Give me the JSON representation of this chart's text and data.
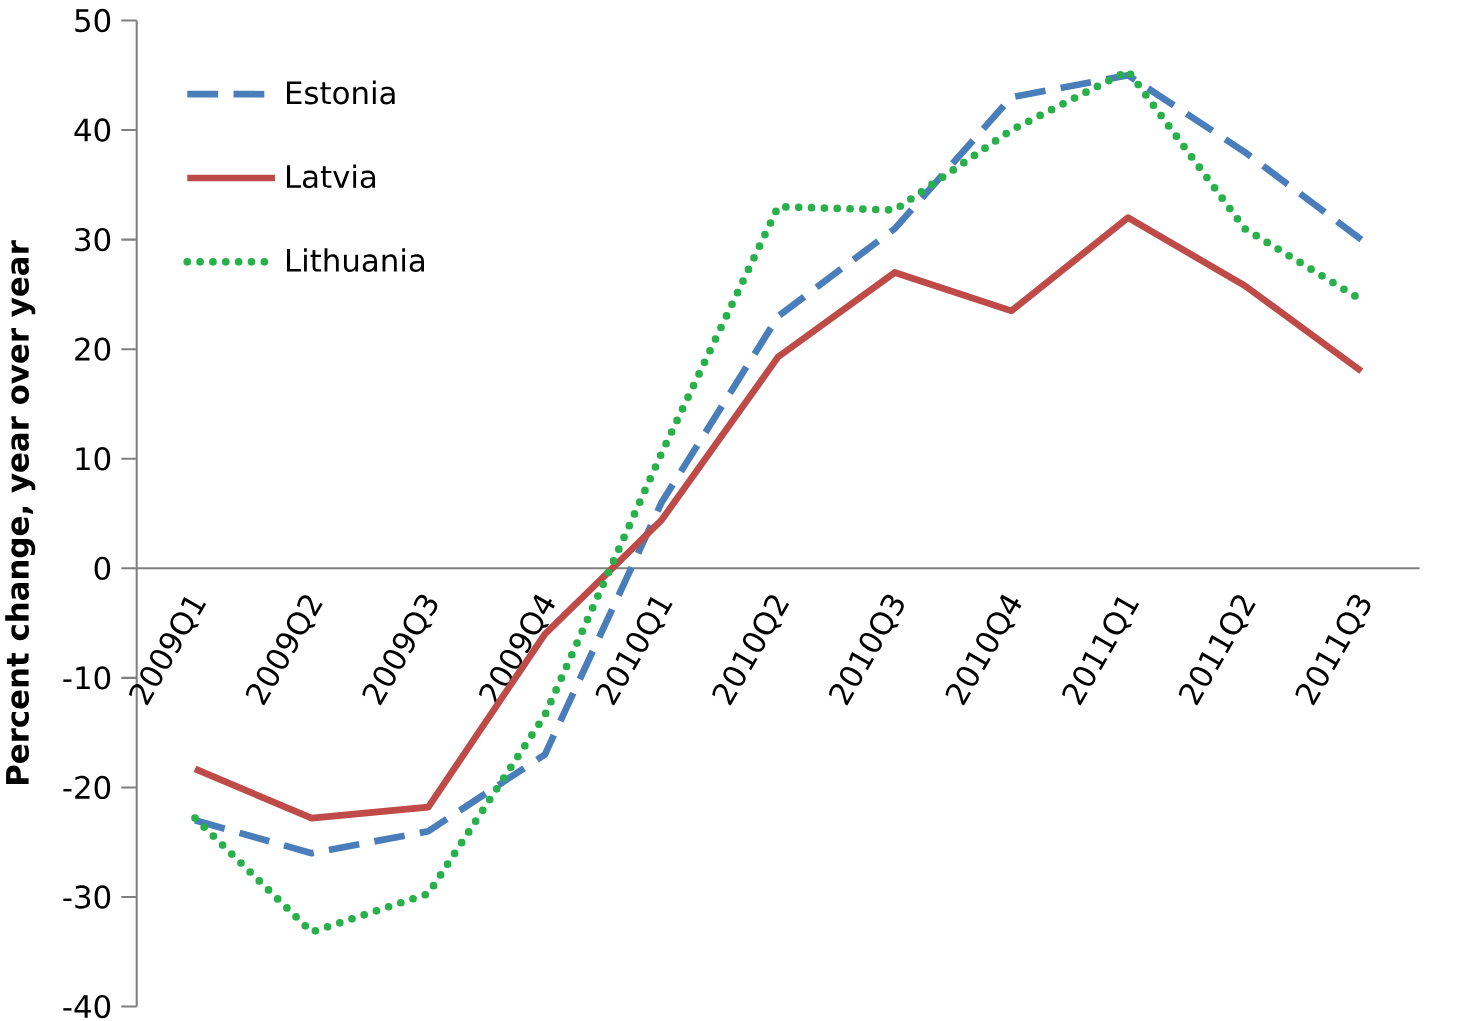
{
  "chart_data": {
    "type": "line",
    "ylabel": "Percent change, year over year",
    "categories": [
      "2009Q1",
      "2009Q2",
      "2009Q3",
      "2009Q4",
      "2010Q1",
      "2010Q2",
      "2010Q3",
      "2010Q4",
      "2011Q1",
      "2011Q2",
      "2011Q3"
    ],
    "series": [
      {
        "name": "Estonia",
        "color": "#4a7ebb",
        "line_style": "dashed",
        "values": [
          -23,
          -26,
          -24,
          -17,
          6,
          23,
          31,
          43,
          45,
          38,
          30
        ]
      },
      {
        "name": "Latvia",
        "color": "#be4b48",
        "line_style": "solid",
        "values": [
          -18.3,
          -22.8,
          -21.8,
          -6,
          4.4,
          19.3,
          27,
          23.5,
          32,
          25.8,
          18
        ]
      },
      {
        "name": "Lithuania",
        "color": "#28b04a",
        "line_style": "dotted",
        "values": [
          -22.8,
          -33.2,
          -29.7,
          -13.4,
          10.5,
          33,
          32.7,
          40,
          45.4,
          31,
          24.5
        ]
      }
    ],
    "ylim": [
      -40,
      50
    ],
    "yticks": [
      -40,
      -30,
      -20,
      -10,
      0,
      10,
      20,
      30,
      40,
      50
    ],
    "legend": "top left",
    "marker": "none"
  }
}
